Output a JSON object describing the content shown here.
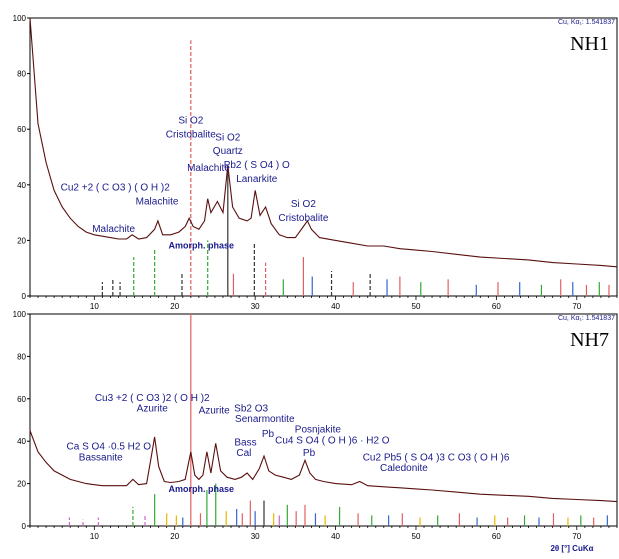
{
  "chart_data": [
    {
      "type": "line",
      "sample_label": "NH1",
      "radiation": "Cu, Kα₁: 1.541837",
      "xlim": [
        2,
        75
      ],
      "ylim": [
        0,
        100
      ],
      "x_ticks": [
        10,
        20,
        30,
        40,
        50,
        60,
        70
      ],
      "y_ticks": [
        0,
        20,
        40,
        60,
        80,
        100
      ],
      "amorphous_label": "Amorph. phase",
      "pattern": [
        [
          2,
          100
        ],
        [
          3,
          62
        ],
        [
          4,
          48
        ],
        [
          5,
          38
        ],
        [
          6,
          32
        ],
        [
          7,
          28
        ],
        [
          8,
          25
        ],
        [
          9,
          23
        ],
        [
          10,
          22
        ],
        [
          11,
          21.5
        ],
        [
          12,
          21
        ],
        [
          13,
          20.5
        ],
        [
          14,
          20.5
        ],
        [
          14.7,
          22
        ],
        [
          15.5,
          20.5
        ],
        [
          16.5,
          21
        ],
        [
          17.5,
          24
        ],
        [
          17.9,
          27
        ],
        [
          18.5,
          22
        ],
        [
          19.5,
          22
        ],
        [
          20.5,
          23
        ],
        [
          21.3,
          25
        ],
        [
          21.8,
          28
        ],
        [
          22.3,
          25
        ],
        [
          23,
          24
        ],
        [
          23.7,
          27
        ],
        [
          24.1,
          35
        ],
        [
          24.5,
          30
        ],
        [
          25.3,
          34
        ],
        [
          26,
          30
        ],
        [
          26.6,
          47
        ],
        [
          27.2,
          32
        ],
        [
          28,
          28
        ],
        [
          29,
          27
        ],
        [
          29.5,
          28
        ],
        [
          30,
          38
        ],
        [
          30.6,
          29
        ],
        [
          31.3,
          32
        ],
        [
          32,
          26
        ],
        [
          33,
          22
        ],
        [
          34,
          21
        ],
        [
          35,
          21
        ],
        [
          36,
          25
        ],
        [
          36.5,
          27
        ],
        [
          37,
          24
        ],
        [
          38,
          21
        ],
        [
          40,
          20
        ],
        [
          42,
          19
        ],
        [
          44,
          18
        ],
        [
          46,
          18
        ],
        [
          48,
          17
        ],
        [
          50,
          16.5
        ],
        [
          52,
          16
        ],
        [
          55,
          15
        ],
        [
          58,
          14
        ],
        [
          61,
          13.5
        ],
        [
          64,
          13
        ],
        [
          67,
          12
        ],
        [
          70,
          11.5
        ],
        [
          73,
          11
        ],
        [
          75,
          10.5
        ]
      ],
      "reference_lines": [
        {
          "x": 22.0,
          "h": 92,
          "color": "#e06060",
          "dash": true
        },
        {
          "x": 26.6,
          "h": 45,
          "color": "#333333",
          "dash": false
        },
        {
          "x": 24.1,
          "h": 20,
          "color": "#33aa33",
          "dash": true
        },
        {
          "x": 17.5,
          "h": 17,
          "color": "#33aa33",
          "dash": true
        },
        {
          "x": 14.9,
          "h": 14,
          "color": "#33aa33",
          "dash": true
        },
        {
          "x": 29.9,
          "h": 19,
          "color": "#333333",
          "dash": true
        },
        {
          "x": 36.0,
          "h": 14,
          "color": "#e06060",
          "dash": false
        },
        {
          "x": 31.3,
          "h": 12,
          "color": "#e06060",
          "dash": true
        },
        {
          "x": 20.9,
          "h": 8,
          "color": "#333333",
          "dash": true
        },
        {
          "x": 37.1,
          "h": 7,
          "color": "#3366cc",
          "dash": false
        },
        {
          "x": 39.5,
          "h": 9,
          "color": "#333333",
          "dash": true
        },
        {
          "x": 44.3,
          "h": 8,
          "color": "#333333",
          "dash": true
        },
        {
          "x": 48.0,
          "h": 7,
          "color": "#e06060",
          "dash": false
        },
        {
          "x": 11.0,
          "h": 5,
          "color": "#333333",
          "dash": true
        },
        {
          "x": 12.3,
          "h": 6,
          "color": "#333333",
          "dash": true
        },
        {
          "x": 13.2,
          "h": 5,
          "color": "#333333",
          "dash": true
        },
        {
          "x": 27.3,
          "h": 8,
          "color": "#e06060",
          "dash": false
        },
        {
          "x": 33.5,
          "h": 6,
          "color": "#33aa33",
          "dash": false
        },
        {
          "x": 42.2,
          "h": 5,
          "color": "#e06060",
          "dash": false
        },
        {
          "x": 46.4,
          "h": 6,
          "color": "#3366cc",
          "dash": false
        },
        {
          "x": 50.6,
          "h": 5,
          "color": "#33aa33",
          "dash": false
        },
        {
          "x": 54.0,
          "h": 6,
          "color": "#e06060",
          "dash": false
        },
        {
          "x": 57.5,
          "h": 4,
          "color": "#3366cc",
          "dash": false
        },
        {
          "x": 60.2,
          "h": 5,
          "color": "#e06060",
          "dash": false
        },
        {
          "x": 62.9,
          "h": 5,
          "color": "#3366cc",
          "dash": false
        },
        {
          "x": 65.6,
          "h": 4,
          "color": "#33aa33",
          "dash": false
        },
        {
          "x": 68.0,
          "h": 6,
          "color": "#e06060",
          "dash": false
        },
        {
          "x": 69.5,
          "h": 5,
          "color": "#3366cc",
          "dash": false
        },
        {
          "x": 71.2,
          "h": 4,
          "color": "#e06060",
          "dash": false
        },
        {
          "x": 72.8,
          "h": 5,
          "color": "#33aa33",
          "dash": false
        },
        {
          "x": 74.0,
          "h": 4,
          "color": "#e06060",
          "dash": false
        }
      ],
      "annotations": [
        {
          "text": "Si O2",
          "x": 22.0,
          "y": 62
        },
        {
          "text": "Cristobalite",
          "x": 22.0,
          "y": 57
        },
        {
          "text": "Si O2",
          "x": 26.6,
          "y": 56
        },
        {
          "text": "Quartz",
          "x": 26.6,
          "y": 51
        },
        {
          "text": "Malachite",
          "x": 24.2,
          "y": 45
        },
        {
          "text": "Pb2 ( S O4 ) O",
          "x": 30.2,
          "y": 46
        },
        {
          "text": "Lanarkite",
          "x": 30.2,
          "y": 41
        },
        {
          "text": "Cu2 +2 ( C O3 ) ( O H )2",
          "x": 12.6,
          "y": 38
        },
        {
          "text": "Malachite",
          "x": 17.8,
          "y": 33
        },
        {
          "text": "Si O2",
          "x": 36.0,
          "y": 32
        },
        {
          "text": "Cristobalite",
          "x": 36.0,
          "y": 27
        },
        {
          "text": "Malachite",
          "x": 12.4,
          "y": 23
        }
      ],
      "amorphous_pos": {
        "x": 23.3,
        "y": 17
      }
    },
    {
      "type": "line",
      "sample_label": "NH7",
      "radiation": "Cu, Kα₁: 1.541837",
      "xlim": [
        2,
        75
      ],
      "ylim": [
        0,
        100
      ],
      "x_ticks": [
        10,
        20,
        30,
        40,
        50,
        60,
        70
      ],
      "y_ticks": [
        0,
        20,
        40,
        60,
        80,
        100
      ],
      "x_axis_label": "2θ [°] CuKα",
      "amorphous_label": "Amorph. phase",
      "pattern": [
        [
          2,
          45
        ],
        [
          3,
          35
        ],
        [
          4,
          30
        ],
        [
          5,
          26
        ],
        [
          6,
          24
        ],
        [
          7,
          22
        ],
        [
          8,
          21
        ],
        [
          9,
          20
        ],
        [
          10,
          19.5
        ],
        [
          11,
          19
        ],
        [
          12,
          19
        ],
        [
          13,
          19
        ],
        [
          14,
          19
        ],
        [
          14.8,
          22
        ],
        [
          15.5,
          19.5
        ],
        [
          16.5,
          20
        ],
        [
          17.1,
          33
        ],
        [
          17.5,
          42
        ],
        [
          18,
          28
        ],
        [
          18.7,
          21
        ],
        [
          19.5,
          20.5
        ],
        [
          20.5,
          21
        ],
        [
          21.3,
          22
        ],
        [
          22,
          35
        ],
        [
          22.5,
          24
        ],
        [
          23,
          22
        ],
        [
          23.5,
          24
        ],
        [
          24,
          35
        ],
        [
          24.5,
          25
        ],
        [
          25.1,
          39
        ],
        [
          25.7,
          26
        ],
        [
          26.5,
          23
        ],
        [
          27.5,
          22
        ],
        [
          28.3,
          23
        ],
        [
          29,
          25
        ],
        [
          29.7,
          22
        ],
        [
          30.5,
          27
        ],
        [
          31.1,
          33
        ],
        [
          31.7,
          26
        ],
        [
          32.5,
          24
        ],
        [
          33.5,
          23
        ],
        [
          34.5,
          22
        ],
        [
          35.5,
          24
        ],
        [
          36.2,
          31
        ],
        [
          36.8,
          25
        ],
        [
          37.5,
          22
        ],
        [
          38.5,
          21
        ],
        [
          40,
          20
        ],
        [
          42,
          19.5
        ],
        [
          43,
          21
        ],
        [
          44,
          19
        ],
        [
          46,
          18.5
        ],
        [
          48,
          18
        ],
        [
          50,
          17.5
        ],
        [
          52,
          17
        ],
        [
          55,
          16
        ],
        [
          58,
          15
        ],
        [
          61,
          14.5
        ],
        [
          64,
          14
        ],
        [
          67,
          13
        ],
        [
          70,
          12.5
        ],
        [
          73,
          12
        ],
        [
          75,
          11.5
        ]
      ],
      "reference_lines": [
        {
          "x": 22.0,
          "h": 100,
          "color": "#e06060",
          "dash": false
        },
        {
          "x": 25.1,
          "h": 20,
          "color": "#33aa33",
          "dash": false
        },
        {
          "x": 24.0,
          "h": 17,
          "color": "#33aa33",
          "dash": false
        },
        {
          "x": 17.5,
          "h": 15,
          "color": "#33aa33",
          "dash": false
        },
        {
          "x": 14.8,
          "h": 9,
          "color": "#33aa33",
          "dash": true
        },
        {
          "x": 29.4,
          "h": 12,
          "color": "#e06060",
          "dash": false
        },
        {
          "x": 31.1,
          "h": 12,
          "color": "#333333",
          "dash": false
        },
        {
          "x": 36.2,
          "h": 10,
          "color": "#e06060",
          "dash": false
        },
        {
          "x": 34.0,
          "h": 10,
          "color": "#33aa33",
          "dash": false
        },
        {
          "x": 40.5,
          "h": 9,
          "color": "#33aa33",
          "dash": false
        },
        {
          "x": 27.7,
          "h": 8,
          "color": "#3366cc",
          "dash": false
        },
        {
          "x": 6.9,
          "h": 4,
          "color": "#cc66cc",
          "dash": true
        },
        {
          "x": 8.6,
          "h": 3,
          "color": "#cc66cc",
          "dash": true
        },
        {
          "x": 10.5,
          "h": 4,
          "color": "#cc66cc",
          "dash": true
        },
        {
          "x": 16.3,
          "h": 5,
          "color": "#cc66cc",
          "dash": true
        },
        {
          "x": 19.0,
          "h": 6,
          "color": "#e6b800",
          "dash": false
        },
        {
          "x": 20.2,
          "h": 5,
          "color": "#e6b800",
          "dash": false
        },
        {
          "x": 21.0,
          "h": 4,
          "color": "#3366cc",
          "dash": false
        },
        {
          "x": 23.2,
          "h": 6,
          "color": "#e06060",
          "dash": false
        },
        {
          "x": 26.4,
          "h": 7,
          "color": "#e6b800",
          "dash": false
        },
        {
          "x": 28.4,
          "h": 6,
          "color": "#e06060",
          "dash": false
        },
        {
          "x": 30.0,
          "h": 7,
          "color": "#3366cc",
          "dash": false
        },
        {
          "x": 32.3,
          "h": 6,
          "color": "#e6b800",
          "dash": false
        },
        {
          "x": 33.0,
          "h": 5,
          "color": "#cc66cc",
          "dash": false
        },
        {
          "x": 35.1,
          "h": 7,
          "color": "#e06060",
          "dash": false
        },
        {
          "x": 37.5,
          "h": 6,
          "color": "#3366cc",
          "dash": false
        },
        {
          "x": 38.7,
          "h": 5,
          "color": "#e6b800",
          "dash": false
        },
        {
          "x": 42.8,
          "h": 6,
          "color": "#e06060",
          "dash": false
        },
        {
          "x": 44.5,
          "h": 5,
          "color": "#33aa33",
          "dash": false
        },
        {
          "x": 46.6,
          "h": 5,
          "color": "#3366cc",
          "dash": false
        },
        {
          "x": 48.3,
          "h": 6,
          "color": "#e06060",
          "dash": false
        },
        {
          "x": 50.5,
          "h": 4,
          "color": "#e6b800",
          "dash": false
        },
        {
          "x": 52.7,
          "h": 5,
          "color": "#33aa33",
          "dash": false
        },
        {
          "x": 55.4,
          "h": 6,
          "color": "#e06060",
          "dash": false
        },
        {
          "x": 57.6,
          "h": 4,
          "color": "#3366cc",
          "dash": false
        },
        {
          "x": 59.8,
          "h": 5,
          "color": "#e6b800",
          "dash": false
        },
        {
          "x": 61.4,
          "h": 4,
          "color": "#e06060",
          "dash": false
        },
        {
          "x": 63.5,
          "h": 5,
          "color": "#33aa33",
          "dash": false
        },
        {
          "x": 65.3,
          "h": 4,
          "color": "#3366cc",
          "dash": false
        },
        {
          "x": 67.1,
          "h": 6,
          "color": "#e06060",
          "dash": false
        },
        {
          "x": 68.9,
          "h": 4,
          "color": "#e6b800",
          "dash": false
        },
        {
          "x": 70.5,
          "h": 5,
          "color": "#33aa33",
          "dash": false
        },
        {
          "x": 72.1,
          "h": 4,
          "color": "#e06060",
          "dash": false
        },
        {
          "x": 73.8,
          "h": 5,
          "color": "#3366cc",
          "dash": false
        }
      ],
      "annotations": [
        {
          "text": "Cu3 +2 ( C O3 )2 ( O H )2",
          "x": 17.2,
          "y": 59
        },
        {
          "text": "Azurite",
          "x": 17.2,
          "y": 54
        },
        {
          "text": "Azurite",
          "x": 24.9,
          "y": 53
        },
        {
          "text": "Sb2 O3",
          "x": 29.5,
          "y": 54
        },
        {
          "text": "Senarmontite",
          "x": 31.2,
          "y": 49
        },
        {
          "text": "Pb",
          "x": 31.6,
          "y": 42
        },
        {
          "text": "Posnjakite",
          "x": 37.8,
          "y": 44
        },
        {
          "text": "Bass",
          "x": 28.8,
          "y": 38
        },
        {
          "text": "Cal",
          "x": 28.6,
          "y": 33
        },
        {
          "text": "Cu4 S O4 ( O H )6 · H2 O",
          "x": 39.6,
          "y": 39
        },
        {
          "text": "Pb",
          "x": 36.7,
          "y": 33
        },
        {
          "text": "Cu2 Pb5 ( S O4 )3 C O3 ( O H )6",
          "x": 52.5,
          "y": 31
        },
        {
          "text": "Caledonite",
          "x": 48.5,
          "y": 26
        },
        {
          "text": "Ca S O4 ·0.5 H2 O",
          "x": 11.8,
          "y": 36
        },
        {
          "text": "Bassanite",
          "x": 10.8,
          "y": 31
        }
      ],
      "amorphous_pos": {
        "x": 23.3,
        "y": 16
      }
    }
  ]
}
